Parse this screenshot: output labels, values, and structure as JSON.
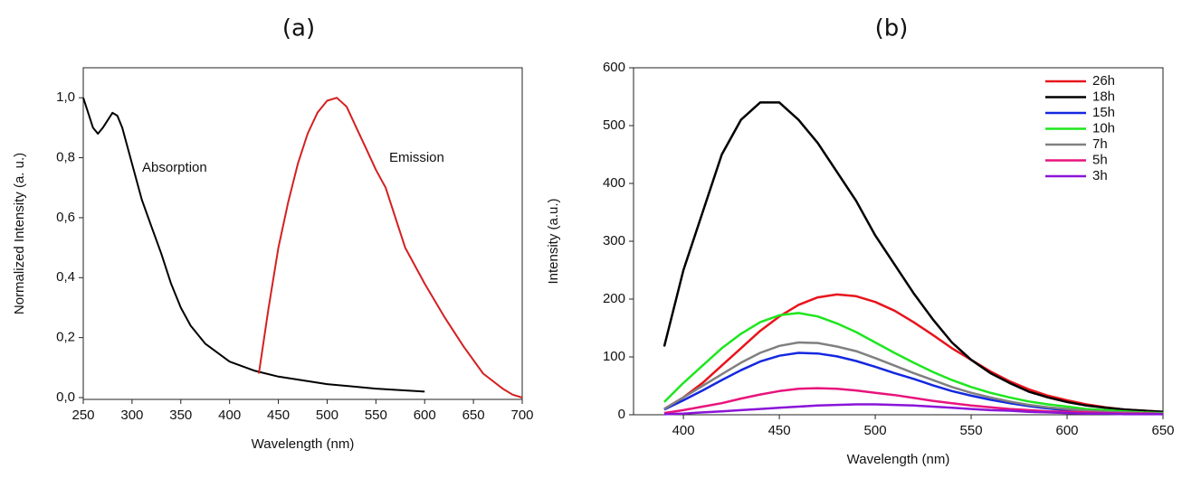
{
  "chart_data": [
    {
      "type": "line",
      "title": "(a)",
      "x_label": "Wavelength (nm)",
      "y_label": "Normalized Intensity (a. u.)",
      "xlim": [
        250,
        700
      ],
      "ylim": [
        -0.006,
        1.1
      ],
      "xticks": [
        250,
        300,
        350,
        400,
        450,
        500,
        550,
        600,
        650,
        700
      ],
      "yticks": [
        {
          "value": 0,
          "label": "0,0"
        },
        {
          "value": 0.2,
          "label": "0,2"
        },
        {
          "value": 0.4,
          "label": "0,4"
        },
        {
          "value": 0.6,
          "label": "0,6"
        },
        {
          "value": 0.8,
          "label": "0,8"
        },
        {
          "value": 1.0,
          "label": "1,0"
        }
      ],
      "legend": "inline",
      "series": [
        {
          "name": "Absorption",
          "color": "#000000",
          "x": [
            250,
            260,
            265,
            270,
            280,
            285,
            290,
            300,
            310,
            320,
            330,
            340,
            350,
            360,
            375,
            400,
            425,
            450,
            500,
            550,
            600
          ],
          "values": [
            1.0,
            0.9,
            0.88,
            0.9,
            0.95,
            0.94,
            0.9,
            0.78,
            0.66,
            0.57,
            0.48,
            0.38,
            0.3,
            0.24,
            0.18,
            0.12,
            0.09,
            0.07,
            0.045,
            0.03,
            0.02
          ]
        },
        {
          "name": "Emission",
          "color": "#d42020",
          "x": [
            430,
            440,
            450,
            460,
            470,
            480,
            490,
            500,
            510,
            520,
            530,
            540,
            550,
            560,
            570,
            580,
            600,
            620,
            640,
            660,
            680,
            690,
            700
          ],
          "values": [
            0.08,
            0.3,
            0.5,
            0.65,
            0.78,
            0.88,
            0.95,
            0.99,
            1.0,
            0.97,
            0.9,
            0.83,
            0.76,
            0.7,
            0.6,
            0.5,
            0.38,
            0.27,
            0.17,
            0.08,
            0.03,
            0.01,
            0
          ]
        }
      ]
    },
    {
      "type": "line",
      "title": "(b)",
      "x_label": "Wavelength (nm)",
      "y_label": "Intensity (a.u.)",
      "xlim": [
        374,
        650
      ],
      "ylim": [
        0,
        600
      ],
      "xticks": [
        400,
        450,
        500,
        550,
        600,
        650
      ],
      "yticks": [
        0,
        100,
        200,
        300,
        400,
        500,
        600
      ],
      "legend": "upper right",
      "x": [
        390,
        400,
        410,
        420,
        430,
        440,
        450,
        460,
        470,
        480,
        490,
        500,
        510,
        520,
        530,
        540,
        550,
        560,
        570,
        580,
        590,
        600,
        610,
        620,
        630,
        640,
        650
      ],
      "series": [
        {
          "name": "26h",
          "color": "#e8141c",
          "values": [
            10,
            30,
            55,
            85,
            115,
            145,
            170,
            190,
            203,
            208,
            205,
            195,
            180,
            160,
            138,
            115,
            95,
            75,
            58,
            44,
            33,
            25,
            18,
            13,
            9,
            7,
            5
          ]
        },
        {
          "name": "18h",
          "color": "#000000",
          "values": [
            118,
            250,
            350,
            450,
            510,
            540,
            540,
            510,
            470,
            420,
            370,
            310,
            260,
            210,
            165,
            125,
            95,
            72,
            55,
            40,
            30,
            22,
            16,
            12,
            9,
            7,
            5
          ]
        },
        {
          "name": "15h",
          "color": "#1428e0",
          "values": [
            9,
            25,
            42,
            60,
            77,
            92,
            102,
            107,
            106,
            101,
            93,
            83,
            72,
            62,
            51,
            41,
            33,
            26,
            20,
            15,
            11,
            8,
            6,
            5,
            4,
            3,
            2
          ]
        },
        {
          "name": "10h",
          "color": "#1ee61e",
          "values": [
            22,
            55,
            85,
            115,
            140,
            160,
            172,
            176,
            170,
            158,
            143,
            125,
            107,
            90,
            74,
            60,
            48,
            38,
            30,
            23,
            18,
            14,
            10,
            8,
            6,
            4,
            3
          ]
        },
        {
          "name": "7h",
          "color": "#808080",
          "values": [
            10,
            30,
            50,
            70,
            90,
            107,
            119,
            125,
            124,
            118,
            110,
            98,
            85,
            72,
            60,
            48,
            38,
            30,
            23,
            17,
            13,
            10,
            7,
            5,
            4,
            3,
            2
          ]
        },
        {
          "name": "5h",
          "color": "#e8147c",
          "values": [
            3,
            8,
            14,
            20,
            28,
            35,
            41,
            45,
            46,
            45,
            42,
            38,
            34,
            29,
            24,
            20,
            16,
            13,
            10,
            8,
            6,
            5,
            4,
            3,
            2,
            2,
            1
          ]
        },
        {
          "name": "3h",
          "color": "#8a14d8",
          "values": [
            1,
            2,
            4,
            6,
            8,
            10,
            12,
            14,
            16,
            17,
            18,
            18,
            17,
            16,
            14,
            12,
            10,
            8,
            7,
            5,
            4,
            3,
            2,
            2,
            1,
            1,
            1
          ]
        }
      ]
    }
  ]
}
